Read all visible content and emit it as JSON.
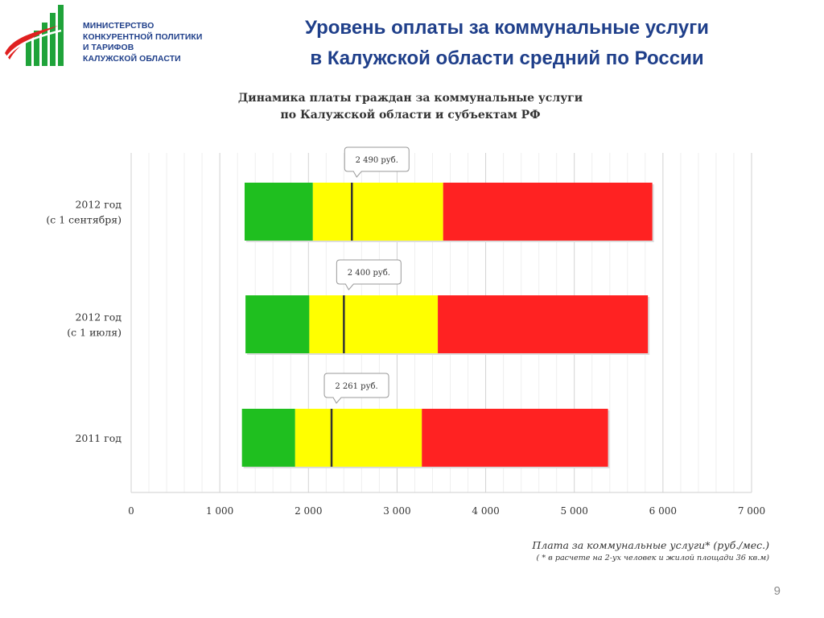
{
  "slide": {
    "ministry_lines": [
      "МИНИСТЕРСТВО",
      "КОНКУРЕНТНОЙ ПОЛИТИКИ",
      "И ТАРИФОВ",
      "КАЛУЖСКОЙ ОБЛАСТИ"
    ],
    "title_lines": [
      "Уровень оплаты за коммунальные услуги",
      "в Калужской области средний по России"
    ],
    "page_number": "9"
  },
  "colors": {
    "title": "#1f3f8a",
    "green": "#1fbf1f",
    "yellow": "#ffff00",
    "red": "#ff2222",
    "marker": "#333333"
  },
  "chart_data": {
    "type": "bar",
    "orientation": "horizontal",
    "stacked": true,
    "title_lines": [
      "Динамика платы граждан за коммунальные услуги",
      "по Калужской области и субъектам РФ"
    ],
    "xlabel": "Плата за коммунальные услуги* (руб./мес.)",
    "note": "( * в расчете на 2-ух человек и жилой площади 36 кв.м)",
    "xlim": [
      0,
      7000
    ],
    "xticks": [
      0,
      1000,
      2000,
      3000,
      4000,
      5000,
      6000,
      7000
    ],
    "xtick_labels": [
      "0",
      "1 000",
      "2 000",
      "3 000",
      "4 000",
      "5 000",
      "6 000",
      "7 000"
    ],
    "grid": "vertical",
    "rows": [
      {
        "label_lines": [
          "2012 год",
          "(с 1 сентября)"
        ],
        "segments": [
          {
            "color": "green",
            "start": 1280,
            "end": 2050
          },
          {
            "color": "yellow",
            "start": 2050,
            "end": 3520
          },
          {
            "color": "red",
            "start": 3520,
            "end": 5880
          }
        ],
        "marker": 2490,
        "marker_label": "2 490 руб."
      },
      {
        "label_lines": [
          "2012 год",
          "(с 1 июля)"
        ],
        "segments": [
          {
            "color": "green",
            "start": 1290,
            "end": 2010
          },
          {
            "color": "yellow",
            "start": 2010,
            "end": 3460
          },
          {
            "color": "red",
            "start": 3460,
            "end": 5830
          }
        ],
        "marker": 2400,
        "marker_label": "2 400 руб."
      },
      {
        "label_lines": [
          "2011 год"
        ],
        "segments": [
          {
            "color": "green",
            "start": 1250,
            "end": 1850
          },
          {
            "color": "yellow",
            "start": 1850,
            "end": 3280
          },
          {
            "color": "red",
            "start": 3280,
            "end": 5380
          }
        ],
        "marker": 2261,
        "marker_label": "2 261 руб."
      }
    ]
  }
}
